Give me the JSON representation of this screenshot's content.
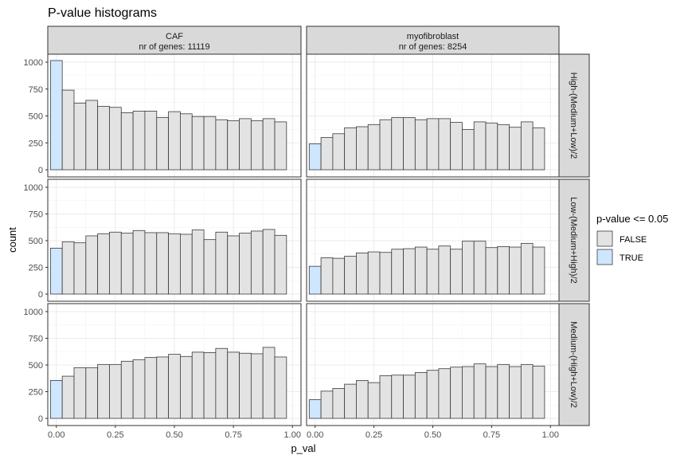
{
  "chart_data": {
    "type": "bar",
    "chart_kind": "faceted-histogram",
    "title": "P-value histograms",
    "xlabel": "p_val",
    "ylabel": "count",
    "xlim": [
      0,
      1
    ],
    "ylim": [
      0,
      1000
    ],
    "x_ticks": [
      "0.00",
      "0.25",
      "0.50",
      "0.75",
      "1.00"
    ],
    "y_ticks": [
      "0",
      "250",
      "500",
      "750",
      "1000"
    ],
    "grid": true,
    "theme": "bw",
    "bin_width": 0.05,
    "bin_left_edges": [
      0,
      0.05,
      0.1,
      0.15,
      0.2,
      0.25,
      0.3,
      0.35,
      0.4,
      0.45,
      0.5,
      0.55,
      0.6,
      0.65,
      0.7,
      0.75,
      0.8,
      0.85,
      0.9,
      0.95
    ],
    "columns": [
      {
        "title": "CAF",
        "subtitle": "nr of genes: 11119"
      },
      {
        "title": "myofibroblast",
        "subtitle": "nr of genes: 8254"
      }
    ],
    "rows": [
      {
        "label": "High-(Medium+Low)/2"
      },
      {
        "label": "Low-(Medium+High)/2"
      },
      {
        "label": "Medium-(High+Low)/2"
      }
    ],
    "legend": {
      "title": "p-value <= 0.05",
      "position": "right",
      "items": [
        {
          "label": "FALSE",
          "color": "#e3e3e3"
        },
        {
          "label": "TRUE",
          "color": "#cfe6ff"
        }
      ]
    },
    "panels": [
      {
        "row": 0,
        "col": 0,
        "values": [
          1015,
          740,
          620,
          645,
          590,
          580,
          530,
          545,
          545,
          485,
          540,
          520,
          495,
          495,
          465,
          455,
          475,
          455,
          475,
          445
        ]
      },
      {
        "row": 0,
        "col": 1,
        "values": [
          240,
          300,
          335,
          390,
          400,
          420,
          465,
          485,
          485,
          465,
          475,
          475,
          440,
          375,
          445,
          435,
          420,
          395,
          445,
          390
        ]
      },
      {
        "row": 1,
        "col": 0,
        "values": [
          430,
          490,
          480,
          545,
          565,
          580,
          570,
          595,
          575,
          575,
          565,
          560,
          600,
          510,
          580,
          545,
          570,
          590,
          605,
          550
        ]
      },
      {
        "row": 1,
        "col": 1,
        "values": [
          260,
          340,
          335,
          355,
          385,
          395,
          390,
          420,
          425,
          440,
          420,
          450,
          420,
          495,
          495,
          435,
          445,
          440,
          475,
          440
        ]
      },
      {
        "row": 2,
        "col": 0,
        "values": [
          355,
          395,
          475,
          475,
          505,
          505,
          535,
          550,
          570,
          575,
          600,
          580,
          620,
          615,
          655,
          620,
          610,
          605,
          665,
          575
        ]
      },
      {
        "row": 2,
        "col": 1,
        "values": [
          175,
          255,
          280,
          320,
          355,
          335,
          400,
          405,
          405,
          430,
          450,
          465,
          480,
          485,
          510,
          485,
          505,
          485,
          505,
          490
        ]
      }
    ]
  }
}
